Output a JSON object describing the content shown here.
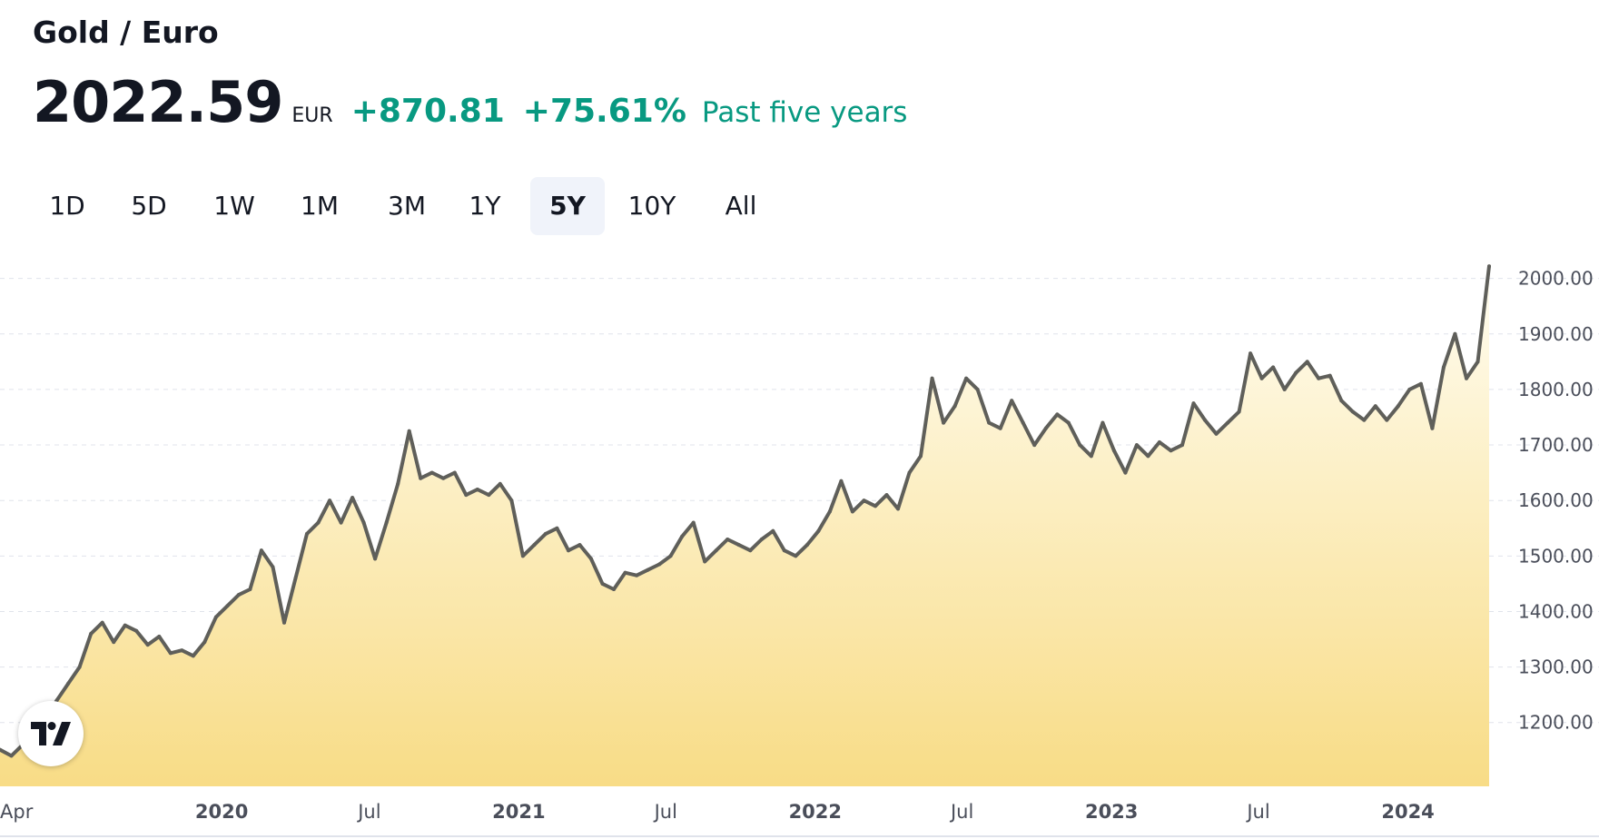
{
  "header": {
    "title": "Gold / Euro",
    "price": "2022.59",
    "currency": "EUR",
    "change": "+870.81",
    "change_pct": "+75.61%",
    "period_label": "Past five years"
  },
  "ranges": {
    "items": [
      "1D",
      "5D",
      "1W",
      "1M",
      "3M",
      "1Y",
      "5Y",
      "10Y",
      "All"
    ],
    "selected": "5Y"
  },
  "colors": {
    "positive": "#089981",
    "line": "#5f5f5a",
    "fill_top": "#fffdf2",
    "fill_bottom": "#f8dc86",
    "grid": "#e0e3eb",
    "text": "#131722",
    "axis_text": "#4a4e5a"
  },
  "logo_icon": "tradingview-logo-icon",
  "chart_data": {
    "type": "area",
    "title": "",
    "xlabel": "",
    "ylabel": "",
    "ylim": [
      1085,
      2060
    ],
    "xlim": [
      "2019-04-03",
      "2024-04-10"
    ],
    "grid": true,
    "y_ticks": [
      "1200.00",
      "1300.00",
      "1400.00",
      "1500.00",
      "1600.00",
      "1700.00",
      "1800.00",
      "1900.00",
      "2000.00"
    ],
    "x_ticks": [
      {
        "label": "Apr",
        "date": "2019-04-01",
        "bold": false
      },
      {
        "label": "2020",
        "date": "2020-01-01",
        "bold": true
      },
      {
        "label": "Jul",
        "date": "2020-07-01",
        "bold": false
      },
      {
        "label": "2021",
        "date": "2021-01-01",
        "bold": true
      },
      {
        "label": "Jul",
        "date": "2021-07-01",
        "bold": false
      },
      {
        "label": "2022",
        "date": "2022-01-01",
        "bold": true
      },
      {
        "label": "Jul",
        "date": "2022-07-01",
        "bold": false
      },
      {
        "label": "2023",
        "date": "2023-01-01",
        "bold": true
      },
      {
        "label": "Jul",
        "date": "2023-07-01",
        "bold": false
      },
      {
        "label": "2024",
        "date": "2024-01-01",
        "bold": true
      }
    ],
    "series": [
      {
        "points": [
          [
            "2019-04-03",
            1151
          ],
          [
            "2019-04-17",
            1140
          ],
          [
            "2019-05-01",
            1160
          ],
          [
            "2019-05-15",
            1190
          ],
          [
            "2019-05-29",
            1210
          ],
          [
            "2019-06-12",
            1240
          ],
          [
            "2019-06-26",
            1270
          ],
          [
            "2019-07-10",
            1300
          ],
          [
            "2019-07-24",
            1360
          ],
          [
            "2019-08-07",
            1380
          ],
          [
            "2019-08-21",
            1345
          ],
          [
            "2019-09-04",
            1375
          ],
          [
            "2019-09-18",
            1365
          ],
          [
            "2019-10-02",
            1340
          ],
          [
            "2019-10-16",
            1355
          ],
          [
            "2019-10-30",
            1325
          ],
          [
            "2019-11-13",
            1330
          ],
          [
            "2019-11-27",
            1320
          ],
          [
            "2019-12-11",
            1345
          ],
          [
            "2019-12-25",
            1390
          ],
          [
            "2020-01-08",
            1410
          ],
          [
            "2020-01-22",
            1430
          ],
          [
            "2020-02-05",
            1440
          ],
          [
            "2020-02-19",
            1510
          ],
          [
            "2020-03-04",
            1480
          ],
          [
            "2020-03-18",
            1380
          ],
          [
            "2020-04-01",
            1460
          ],
          [
            "2020-04-15",
            1540
          ],
          [
            "2020-04-29",
            1560
          ],
          [
            "2020-05-13",
            1600
          ],
          [
            "2020-05-27",
            1560
          ],
          [
            "2020-06-10",
            1605
          ],
          [
            "2020-06-24",
            1560
          ],
          [
            "2020-07-08",
            1495
          ],
          [
            "2020-07-22",
            1560
          ],
          [
            "2020-08-05",
            1630
          ],
          [
            "2020-08-19",
            1725
          ],
          [
            "2020-09-02",
            1640
          ],
          [
            "2020-09-16",
            1650
          ],
          [
            "2020-09-30",
            1640
          ],
          [
            "2020-10-14",
            1650
          ],
          [
            "2020-10-28",
            1610
          ],
          [
            "2020-11-11",
            1620
          ],
          [
            "2020-11-25",
            1610
          ],
          [
            "2020-12-09",
            1630
          ],
          [
            "2020-12-23",
            1600
          ],
          [
            "2021-01-06",
            1500
          ],
          [
            "2021-01-20",
            1520
          ],
          [
            "2021-02-03",
            1540
          ],
          [
            "2021-02-17",
            1550
          ],
          [
            "2021-03-03",
            1510
          ],
          [
            "2021-03-17",
            1520
          ],
          [
            "2021-03-31",
            1495
          ],
          [
            "2021-04-14",
            1450
          ],
          [
            "2021-04-28",
            1440
          ],
          [
            "2021-05-12",
            1470
          ],
          [
            "2021-05-26",
            1465
          ],
          [
            "2021-06-09",
            1475
          ],
          [
            "2021-06-23",
            1485
          ],
          [
            "2021-07-07",
            1500
          ],
          [
            "2021-07-21",
            1535
          ],
          [
            "2021-08-04",
            1560
          ],
          [
            "2021-08-18",
            1490
          ],
          [
            "2021-09-01",
            1510
          ],
          [
            "2021-09-15",
            1530
          ],
          [
            "2021-09-29",
            1520
          ],
          [
            "2021-10-13",
            1510
          ],
          [
            "2021-10-27",
            1530
          ],
          [
            "2021-11-10",
            1545
          ],
          [
            "2021-11-24",
            1510
          ],
          [
            "2021-12-08",
            1500
          ],
          [
            "2021-12-22",
            1520
          ],
          [
            "2022-01-05",
            1545
          ],
          [
            "2022-01-19",
            1580
          ],
          [
            "2022-02-02",
            1635
          ],
          [
            "2022-02-16",
            1580
          ],
          [
            "2022-03-02",
            1600
          ],
          [
            "2022-03-16",
            1590
          ],
          [
            "2022-03-30",
            1610
          ],
          [
            "2022-04-13",
            1585
          ],
          [
            "2022-04-27",
            1650
          ],
          [
            "2022-05-11",
            1680
          ],
          [
            "2022-05-25",
            1820
          ],
          [
            "2022-06-08",
            1740
          ],
          [
            "2022-06-22",
            1770
          ],
          [
            "2022-07-06",
            1820
          ],
          [
            "2022-07-20",
            1800
          ],
          [
            "2022-08-03",
            1740
          ],
          [
            "2022-08-17",
            1730
          ],
          [
            "2022-08-31",
            1780
          ],
          [
            "2022-09-14",
            1740
          ],
          [
            "2022-09-28",
            1700
          ],
          [
            "2022-10-12",
            1730
          ],
          [
            "2022-10-26",
            1755
          ],
          [
            "2022-11-09",
            1740
          ],
          [
            "2022-11-23",
            1700
          ],
          [
            "2022-12-07",
            1680
          ],
          [
            "2022-12-21",
            1740
          ],
          [
            "2023-01-04",
            1690
          ],
          [
            "2023-01-18",
            1650
          ],
          [
            "2023-02-01",
            1700
          ],
          [
            "2023-02-15",
            1680
          ],
          [
            "2023-03-01",
            1705
          ],
          [
            "2023-03-15",
            1690
          ],
          [
            "2023-03-29",
            1700
          ],
          [
            "2023-04-12",
            1775
          ],
          [
            "2023-04-26",
            1745
          ],
          [
            "2023-05-10",
            1720
          ],
          [
            "2023-05-24",
            1740
          ],
          [
            "2023-06-07",
            1760
          ],
          [
            "2023-06-21",
            1865
          ],
          [
            "2023-07-05",
            1820
          ],
          [
            "2023-07-19",
            1840
          ],
          [
            "2023-08-02",
            1800
          ],
          [
            "2023-08-16",
            1830
          ],
          [
            "2023-08-30",
            1850
          ],
          [
            "2023-09-13",
            1820
          ],
          [
            "2023-09-27",
            1825
          ],
          [
            "2023-10-11",
            1780
          ],
          [
            "2023-10-25",
            1760
          ],
          [
            "2023-11-08",
            1745
          ],
          [
            "2023-11-22",
            1770
          ],
          [
            "2023-12-06",
            1745
          ],
          [
            "2023-12-20",
            1770
          ],
          [
            "2024-01-03",
            1800
          ],
          [
            "2024-01-17",
            1810
          ],
          [
            "2024-01-31",
            1730
          ],
          [
            "2024-02-14",
            1840
          ],
          [
            "2024-02-28",
            1900
          ],
          [
            "2024-03-13",
            1820
          ],
          [
            "2024-03-27",
            1850
          ],
          [
            "2024-04-10",
            2022
          ]
        ]
      }
    ]
  }
}
